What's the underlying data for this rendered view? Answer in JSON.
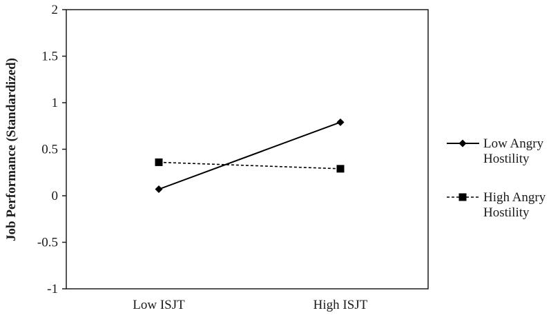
{
  "chart_data": {
    "type": "line",
    "title": "",
    "xlabel": "",
    "ylabel": "Job Performance (Standardized)",
    "categories": [
      "Low ISJT",
      "High ISJT"
    ],
    "ylim": [
      -1,
      2
    ],
    "yticks": [
      2,
      1.5,
      1,
      0.5,
      0,
      -0.5,
      -1
    ],
    "ytick_labels": [
      "2",
      "1.5",
      "1",
      "0.5",
      "0",
      "-0.5",
      "-1"
    ],
    "grid": false,
    "legend_position": "right",
    "series": [
      {
        "name": "Low Angry Hostility",
        "name_lines": [
          "Low Angry",
          "Hostility"
        ],
        "values": [
          0.07,
          0.79
        ],
        "marker": "diamond",
        "line_style": "solid",
        "color": "#000000"
      },
      {
        "name": "High Angry Hostility",
        "name_lines": [
          "High Angry",
          "Hostility"
        ],
        "values": [
          0.36,
          0.29
        ],
        "marker": "square",
        "line_style": "dashed",
        "color": "#000000"
      }
    ]
  }
}
